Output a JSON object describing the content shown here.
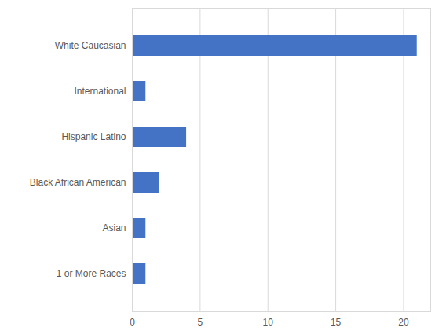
{
  "chart_data": {
    "type": "bar",
    "orientation": "horizontal",
    "categories": [
      "White Caucasian",
      "International",
      "Hispanic Latino",
      "Black African American",
      "Asian",
      "1 or More Races"
    ],
    "values": [
      21,
      1,
      4,
      2,
      1,
      1
    ],
    "color": "#4472c4",
    "xlim": [
      0,
      22
    ],
    "xticks": [
      0,
      5,
      10,
      15,
      20
    ],
    "grid": true
  }
}
